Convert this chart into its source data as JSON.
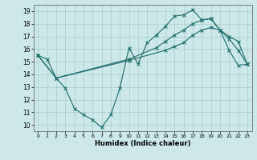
{
  "xlabel": "Humidex (Indice chaleur)",
  "xlim": [
    -0.5,
    23.5
  ],
  "ylim": [
    9.5,
    19.5
  ],
  "yticks": [
    10,
    11,
    12,
    13,
    14,
    15,
    16,
    17,
    18,
    19
  ],
  "xticks": [
    0,
    1,
    2,
    3,
    4,
    5,
    6,
    7,
    8,
    9,
    10,
    11,
    12,
    13,
    14,
    15,
    16,
    17,
    18,
    19,
    20,
    21,
    22,
    23
  ],
  "bg_color": "#cce8e8",
  "line_color": "#1a6b6b",
  "grid_color": "#aacccc",
  "line1_x": [
    0,
    1,
    2,
    3,
    4,
    5,
    6,
    7,
    8,
    9,
    10,
    11,
    12,
    13,
    14,
    15,
    16,
    17,
    18,
    19,
    20,
    21,
    22,
    23
  ],
  "line1_y": [
    15.5,
    15.2,
    13.7,
    12.9,
    11.3,
    10.8,
    10.4,
    9.8,
    10.8,
    12.9,
    16.1,
    14.8,
    16.5,
    17.1,
    17.8,
    18.6,
    18.7,
    19.1,
    18.3,
    18.4,
    17.5,
    16.8,
    15.9,
    14.8
  ],
  "line2_x": [
    0,
    2,
    10,
    14,
    15,
    16,
    17,
    18,
    19,
    20,
    21,
    22,
    23
  ],
  "line2_y": [
    15.5,
    13.7,
    15.1,
    15.9,
    16.2,
    16.5,
    17.1,
    17.5,
    17.7,
    17.5,
    17.0,
    16.6,
    14.8
  ],
  "line3_x": [
    0,
    2,
    10,
    13,
    14,
    15,
    16,
    17,
    18,
    19,
    20,
    21,
    22,
    23
  ],
  "line3_y": [
    15.5,
    13.7,
    15.2,
    16.1,
    16.6,
    17.1,
    17.5,
    18.0,
    18.3,
    18.4,
    17.5,
    15.9,
    14.7,
    14.8
  ]
}
